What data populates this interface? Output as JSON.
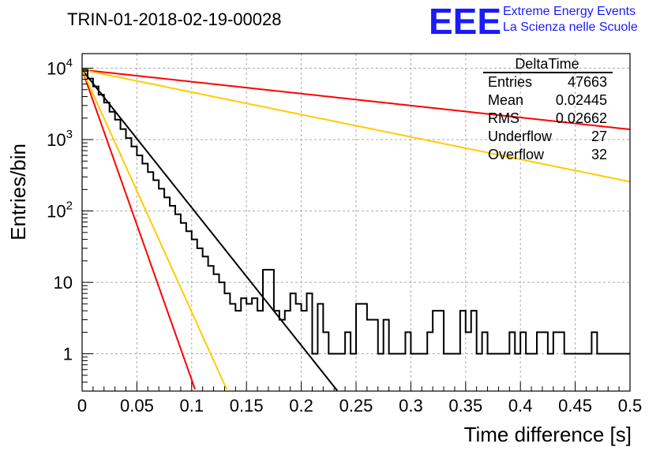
{
  "chart_data": {
    "type": "histogram",
    "title": "TRIN-01-2018-02-19-00028",
    "xlabel": "Time difference [s]",
    "ylabel": "Entries/bin",
    "xlim": [
      0,
      0.5
    ],
    "ylim": [
      0.3,
      16000
    ],
    "yscale": "log",
    "grid": true,
    "x_ticks": [
      "0",
      "0.05",
      "0.1",
      "0.15",
      "0.2",
      "0.25",
      "0.3",
      "0.35",
      "0.4",
      "0.45",
      "0.5"
    ],
    "y_ticks": [
      {
        "value": 1,
        "label": "1"
      },
      {
        "value": 10,
        "label": "10"
      },
      {
        "value": 100,
        "base": "10",
        "exp": "2"
      },
      {
        "value": 1000,
        "base": "10",
        "exp": "3"
      },
      {
        "value": 10000,
        "base": "10",
        "exp": "4"
      }
    ],
    "bin_width": 0.005,
    "histogram": {
      "name": "DeltaTime",
      "color": "#000000",
      "values": [
        9500,
        7150,
        5550,
        4250,
        3300,
        2450,
        1900,
        1400,
        1050,
        800,
        600,
        460,
        350,
        270,
        205,
        155,
        118,
        90,
        68,
        52,
        40,
        30,
        23,
        17,
        13,
        10,
        7,
        5,
        4,
        6,
        5,
        6,
        4,
        15,
        15,
        4,
        3,
        4,
        7,
        5,
        4,
        7,
        1,
        5,
        2,
        1,
        1,
        1,
        2,
        1,
        5,
        5,
        3,
        3,
        1,
        3,
        1,
        1,
        1,
        2,
        1,
        1,
        1,
        2,
        4,
        4,
        1,
        1,
        1,
        4,
        2,
        4,
        1,
        2,
        1,
        1,
        1,
        1,
        2,
        1,
        2,
        1,
        1,
        2,
        2,
        1,
        2,
        2,
        1,
        1,
        1,
        1,
        1,
        2,
        1,
        1,
        1,
        1,
        1,
        1
      ]
    },
    "fits": [
      {
        "color": "#000000",
        "A": 9500,
        "tau": 0.0225,
        "x_range": [
          0,
          0.25
        ]
      },
      {
        "color": "#ff0000",
        "A": 9500,
        "tau": 0.01,
        "x_range": [
          0,
          0.105
        ]
      },
      {
        "color": "#ffcc00",
        "A": 9500,
        "tau": 0.0128,
        "x_range": [
          0,
          0.132
        ]
      },
      {
        "color": "#ff0000",
        "A": 9500,
        "tau": 0.26,
        "x_range": [
          0,
          0.5
        ]
      },
      {
        "color": "#ffcc00",
        "A": 9500,
        "tau": 0.1385,
        "x_range": [
          0,
          0.5
        ]
      }
    ],
    "stats_box": {
      "title": "DeltaTime",
      "rows": [
        {
          "label": "Entries",
          "value": "47663"
        },
        {
          "label": "Mean",
          "value": "0.02445"
        },
        {
          "label": "RMS",
          "value": "0.02662"
        },
        {
          "label": "Underflow",
          "value": "27"
        },
        {
          "label": "Overflow",
          "value": "32"
        }
      ]
    }
  },
  "logo": {
    "letters": "EEE",
    "line1": "Extreme Energy Events",
    "line2": "La Scienza nelle Scuole"
  },
  "colors": {
    "accent": "#1a1aff",
    "grid": "#aaaaaa"
  }
}
